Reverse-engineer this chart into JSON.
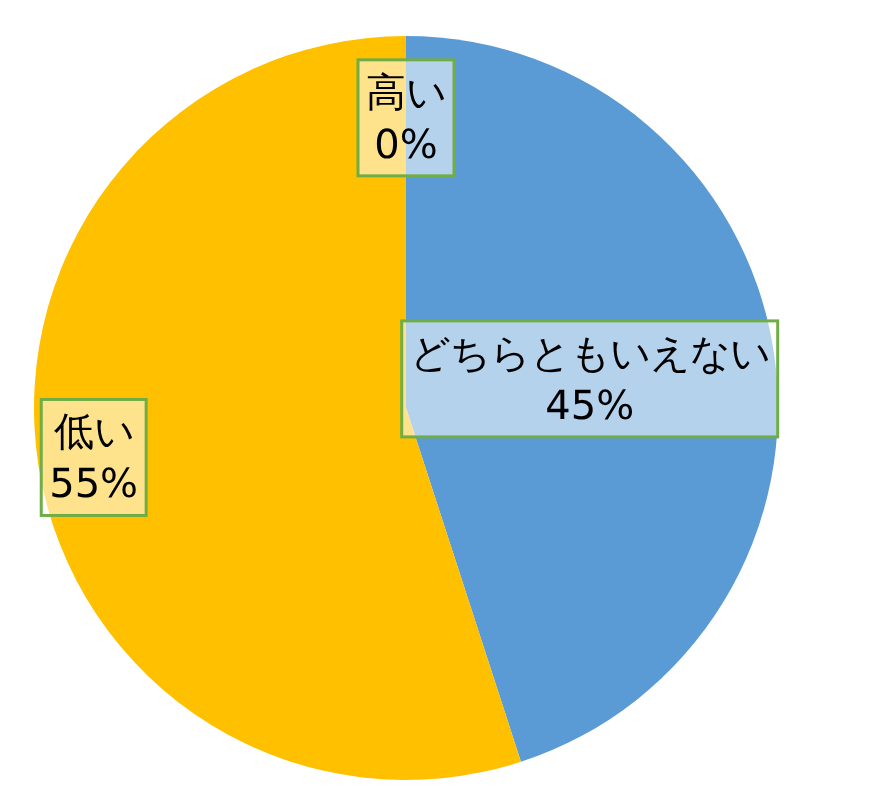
{
  "chart_data": {
    "type": "pie",
    "categories": [
      "高い",
      "どちらともいえない",
      "低い"
    ],
    "values": [
      0,
      45,
      55
    ],
    "colors": [
      "#ed7d31",
      "#5b9bd5",
      "#ffc000"
    ],
    "value_labels": [
      "0%",
      "45%",
      "55%"
    ]
  }
}
